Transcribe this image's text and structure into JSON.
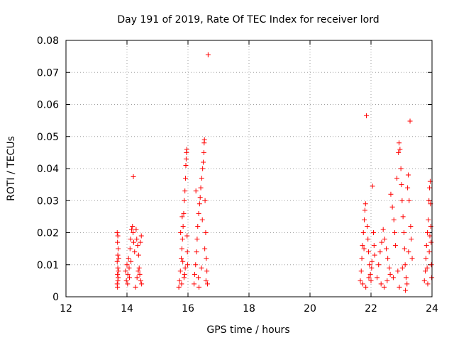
{
  "chart_data": {
    "type": "scatter",
    "title": "Day 191 of 2019, Rate Of TEC Index for receiver lord",
    "xlabel": "GPS time / hours",
    "ylabel": "ROTI / TECUs",
    "xlim": [
      12,
      24
    ],
    "ylim": [
      0,
      0.08
    ],
    "xticks": [
      12,
      14,
      16,
      18,
      20,
      22,
      24
    ],
    "yticks": [
      0,
      0.01,
      0.02,
      0.03,
      0.04,
      0.05,
      0.06,
      0.07,
      0.08
    ],
    "xtick_labels": [
      "12",
      "14",
      "16",
      "18",
      "20",
      "22",
      "24"
    ],
    "ytick_labels": [
      "0",
      "0.01",
      "0.02",
      "0.03",
      "0.04",
      "0.05",
      "0.06",
      "0.07",
      "0.08"
    ],
    "grid": true,
    "marker": "+",
    "color": "#ff0000",
    "series": [
      {
        "name": "ROTI",
        "points": [
          [
            13.68,
            0.02
          ],
          [
            13.7,
            0.019
          ],
          [
            13.69,
            0.017
          ],
          [
            13.71,
            0.015
          ],
          [
            13.7,
            0.013
          ],
          [
            13.68,
            0.011
          ],
          [
            13.7,
            0.009
          ],
          [
            13.69,
            0.007
          ],
          [
            13.71,
            0.006
          ],
          [
            13.7,
            0.005
          ],
          [
            13.68,
            0.004
          ],
          [
            13.72,
            0.008
          ],
          [
            13.73,
            0.012
          ],
          [
            13.69,
            0.003
          ],
          [
            13.95,
            0.008
          ],
          [
            14.0,
            0.01
          ],
          [
            14.05,
            0.012
          ],
          [
            14.1,
            0.015
          ],
          [
            14.12,
            0.018
          ],
          [
            14.15,
            0.021
          ],
          [
            14.18,
            0.022
          ],
          [
            14.2,
            0.02
          ],
          [
            14.08,
            0.006
          ],
          [
            14.02,
            0.004
          ],
          [
            13.98,
            0.005
          ],
          [
            14.22,
            0.017
          ],
          [
            14.25,
            0.014
          ],
          [
            14.03,
            0.007
          ],
          [
            14.07,
            0.009
          ],
          [
            14.13,
            0.011
          ],
          [
            14.21,
            0.0375
          ],
          [
            14.3,
            0.021
          ],
          [
            14.32,
            0.018
          ],
          [
            14.35,
            0.016
          ],
          [
            14.38,
            0.013
          ],
          [
            14.4,
            0.009
          ],
          [
            14.42,
            0.007
          ],
          [
            14.45,
            0.005
          ],
          [
            14.48,
            0.004
          ],
          [
            14.33,
            0.006
          ],
          [
            14.37,
            0.008
          ],
          [
            14.44,
            0.017
          ],
          [
            14.47,
            0.019
          ],
          [
            14.28,
            0.003
          ],
          [
            15.7,
            0.003
          ],
          [
            15.72,
            0.005
          ],
          [
            15.75,
            0.008
          ],
          [
            15.78,
            0.012
          ],
          [
            15.8,
            0.015
          ],
          [
            15.82,
            0.018
          ],
          [
            15.84,
            0.022
          ],
          [
            15.86,
            0.026
          ],
          [
            15.88,
            0.03
          ],
          [
            15.9,
            0.033
          ],
          [
            15.92,
            0.037
          ],
          [
            15.93,
            0.041
          ],
          [
            15.94,
            0.043
          ],
          [
            15.95,
            0.045
          ],
          [
            15.96,
            0.046
          ],
          [
            15.91,
            0.009
          ],
          [
            15.87,
            0.006
          ],
          [
            15.83,
            0.011
          ],
          [
            15.79,
            0.004
          ],
          [
            15.97,
            0.019
          ],
          [
            15.98,
            0.014
          ],
          [
            15.99,
            0.01
          ],
          [
            15.76,
            0.02
          ],
          [
            15.81,
            0.025
          ],
          [
            15.89,
            0.007
          ],
          [
            16.2,
            0.004
          ],
          [
            16.22,
            0.007
          ],
          [
            16.25,
            0.01
          ],
          [
            16.28,
            0.014
          ],
          [
            16.3,
            0.018
          ],
          [
            16.32,
            0.022
          ],
          [
            16.35,
            0.026
          ],
          [
            16.38,
            0.029
          ],
          [
            16.4,
            0.031
          ],
          [
            16.42,
            0.034
          ],
          [
            16.45,
            0.037
          ],
          [
            16.48,
            0.04
          ],
          [
            16.5,
            0.042
          ],
          [
            16.52,
            0.045
          ],
          [
            16.53,
            0.048
          ],
          [
            16.54,
            0.049
          ],
          [
            16.56,
            0.03
          ],
          [
            16.58,
            0.02
          ],
          [
            16.6,
            0.012
          ],
          [
            16.62,
            0.008
          ],
          [
            16.64,
            0.004
          ],
          [
            16.66,
            0.0755
          ],
          [
            16.34,
            0.006
          ],
          [
            16.44,
            0.009
          ],
          [
            16.55,
            0.015
          ],
          [
            16.26,
            0.033
          ],
          [
            16.36,
            0.003
          ],
          [
            16.47,
            0.024
          ],
          [
            16.59,
            0.005
          ],
          [
            21.65,
            0.005
          ],
          [
            21.68,
            0.008
          ],
          [
            21.7,
            0.012
          ],
          [
            21.72,
            0.016
          ],
          [
            21.75,
            0.02
          ],
          [
            21.78,
            0.024
          ],
          [
            21.8,
            0.027
          ],
          [
            21.82,
            0.029
          ],
          [
            21.85,
            0.0565
          ],
          [
            21.88,
            0.022
          ],
          [
            21.9,
            0.018
          ],
          [
            21.92,
            0.014
          ],
          [
            21.95,
            0.01
          ],
          [
            21.98,
            0.007
          ],
          [
            22.0,
            0.005
          ],
          [
            22.02,
            0.009
          ],
          [
            22.05,
            0.0345
          ],
          [
            22.08,
            0.02
          ],
          [
            22.1,
            0.016
          ],
          [
            22.12,
            0.013
          ],
          [
            21.73,
            0.004
          ],
          [
            21.83,
            0.003
          ],
          [
            21.93,
            0.006
          ],
          [
            22.03,
            0.011
          ],
          [
            21.77,
            0.015
          ],
          [
            22.2,
            0.006
          ],
          [
            22.25,
            0.01
          ],
          [
            22.3,
            0.014
          ],
          [
            22.35,
            0.017
          ],
          [
            22.4,
            0.021
          ],
          [
            22.45,
            0.018
          ],
          [
            22.5,
            0.015
          ],
          [
            22.55,
            0.012
          ],
          [
            22.6,
            0.009
          ],
          [
            22.65,
            0.032
          ],
          [
            22.7,
            0.028
          ],
          [
            22.75,
            0.024
          ],
          [
            22.78,
            0.02
          ],
          [
            22.8,
            0.016
          ],
          [
            22.33,
            0.004
          ],
          [
            22.43,
            0.003
          ],
          [
            22.53,
            0.005
          ],
          [
            22.63,
            0.007
          ],
          [
            22.73,
            0.006
          ],
          [
            22.85,
            0.037
          ],
          [
            22.9,
            0.045
          ],
          [
            22.92,
            0.048
          ],
          [
            22.95,
            0.046
          ],
          [
            22.98,
            0.04
          ],
          [
            23.0,
            0.035
          ],
          [
            23.02,
            0.03
          ],
          [
            23.05,
            0.025
          ],
          [
            23.08,
            0.02
          ],
          [
            23.1,
            0.015
          ],
          [
            23.12,
            0.01
          ],
          [
            23.15,
            0.006
          ],
          [
            23.18,
            0.004
          ],
          [
            23.2,
            0.034
          ],
          [
            23.22,
            0.038
          ],
          [
            23.25,
            0.03
          ],
          [
            23.28,
            0.0548
          ],
          [
            23.3,
            0.022
          ],
          [
            23.32,
            0.018
          ],
          [
            23.35,
            0.012
          ],
          [
            22.88,
            0.008
          ],
          [
            22.93,
            0.003
          ],
          [
            23.03,
            0.009
          ],
          [
            23.13,
            0.002
          ],
          [
            23.23,
            0.014
          ],
          [
            23.75,
            0.005
          ],
          [
            23.78,
            0.008
          ],
          [
            23.8,
            0.012
          ],
          [
            23.82,
            0.016
          ],
          [
            23.85,
            0.02
          ],
          [
            23.88,
            0.024
          ],
          [
            23.9,
            0.03
          ],
          [
            23.92,
            0.034
          ],
          [
            23.94,
            0.036
          ],
          [
            23.95,
            0.029
          ],
          [
            23.96,
            0.022
          ],
          [
            23.97,
            0.017
          ],
          [
            23.98,
            0.01
          ],
          [
            23.99,
            0.006
          ],
          [
            23.86,
            0.004
          ],
          [
            23.91,
            0.014
          ],
          [
            23.93,
            0.019
          ],
          [
            23.84,
            0.009
          ]
        ]
      }
    ]
  }
}
